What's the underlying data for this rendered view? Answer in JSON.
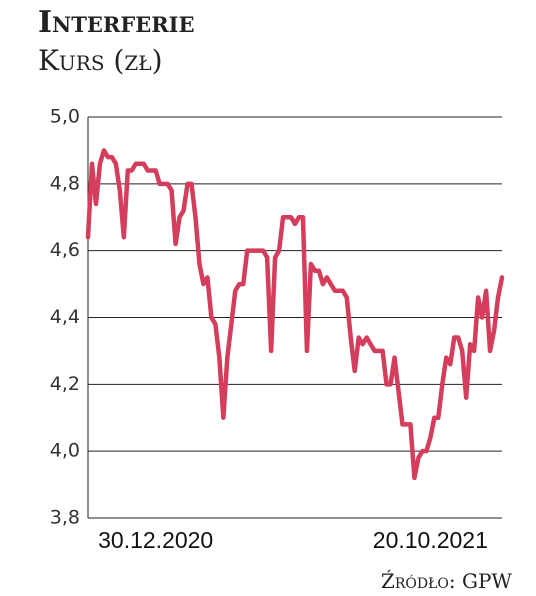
{
  "chart_data": {
    "type": "line",
    "title": "Interferie",
    "subtitle": "Kurs (zł)",
    "source": "Źródło: GPW",
    "categories": [
      null,
      null,
      null,
      null,
      null,
      null,
      null,
      null,
      null,
      null,
      null,
      null,
      null,
      null,
      null,
      null,
      null,
      "30.12.2020",
      null,
      null,
      null,
      null,
      null,
      null,
      null,
      null,
      null,
      null,
      null,
      null,
      null,
      null,
      null,
      null,
      null,
      null,
      null,
      null,
      null,
      null,
      null,
      null,
      null,
      null,
      null,
      null,
      null,
      null,
      null,
      null,
      null,
      null,
      null,
      null,
      null,
      null,
      null,
      null,
      null,
      null,
      null,
      null,
      null,
      null,
      null,
      null,
      null,
      null,
      null,
      null,
      null,
      null,
      null,
      null,
      null,
      null,
      null,
      null,
      null,
      null,
      null,
      null,
      null,
      null,
      null,
      null,
      "20.10.2021",
      null,
      null,
      null,
      null,
      null,
      null,
      null,
      null,
      null,
      null,
      null,
      null,
      null,
      null,
      null,
      null,
      null,
      null
    ],
    "series": [
      {
        "name": "Kurs",
        "color": "#d43d5c",
        "values": [
          4.64,
          4.86,
          4.74,
          4.86,
          4.9,
          4.88,
          4.88,
          4.86,
          4.78,
          4.64,
          4.84,
          4.84,
          4.86,
          4.86,
          4.86,
          4.84,
          4.84,
          4.84,
          4.8,
          4.8,
          4.8,
          4.78,
          4.62,
          4.7,
          4.72,
          4.8,
          4.8,
          4.7,
          4.56,
          4.5,
          4.52,
          4.4,
          4.38,
          4.28,
          4.1,
          4.28,
          4.38,
          4.48,
          4.5,
          4.5,
          4.6,
          4.6,
          4.6,
          4.6,
          4.6,
          4.58,
          4.3,
          4.58,
          4.6,
          4.7,
          4.7,
          4.7,
          4.68,
          4.7,
          4.7,
          4.3,
          4.56,
          4.54,
          4.54,
          4.5,
          4.52,
          4.5,
          4.48,
          4.48,
          4.48,
          4.46,
          4.34,
          4.24,
          4.34,
          4.32,
          4.34,
          4.32,
          4.3,
          4.3,
          4.3,
          4.2,
          4.2,
          4.28,
          4.18,
          4.08,
          4.08,
          4.08,
          3.92,
          3.98,
          4.0,
          4.0,
          4.04,
          4.1,
          4.1,
          4.2,
          4.28,
          4.26,
          4.34,
          4.34,
          4.3,
          4.16,
          4.32,
          4.3,
          4.46,
          4.4,
          4.48,
          4.3,
          4.36,
          4.46,
          4.52
        ]
      }
    ],
    "ylim": [
      3.8,
      5.0
    ],
    "yticks": [
      {
        "value": 3.8,
        "label": "3,8"
      },
      {
        "value": 4.0,
        "label": "4,0"
      },
      {
        "value": 4.2,
        "label": "4,2"
      },
      {
        "value": 4.4,
        "label": "4,4"
      },
      {
        "value": 4.6,
        "label": "4,6"
      },
      {
        "value": 4.8,
        "label": "4,8"
      },
      {
        "value": 5.0,
        "label": "5,0"
      }
    ],
    "grid": true
  }
}
